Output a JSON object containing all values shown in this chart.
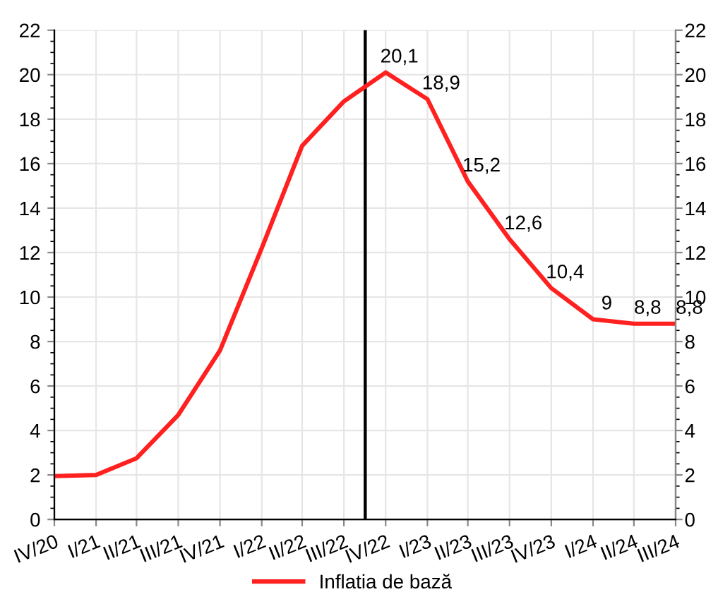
{
  "chart_data": {
    "type": "line",
    "x": [
      "2020-11-15",
      "2021-02-15",
      "2021-05-15",
      "2021-08-15",
      "2021-11-15",
      "2022-02-15",
      "2022-05-15",
      "2022-08-15",
      "2022-11-15",
      "2023-02-15",
      "2023-05-15",
      "2023-08-15",
      "2023-11-15",
      "2024-02-15",
      "2024-05-15",
      "2024-08-15"
    ],
    "series": [
      {
        "name": "Inflatia de bază",
        "color": "#ff2020",
        "values": [
          1.95,
          2.0,
          2.75,
          4.7,
          7.6,
          12.2,
          16.8,
          18.8,
          20.1,
          18.9,
          15.2,
          12.6,
          10.4,
          9,
          8.8,
          8.8
        ],
        "value_labels": [
          null,
          null,
          null,
          null,
          null,
          null,
          null,
          null,
          "20,1",
          "18,9",
          "15,2",
          "12,6",
          "10,4",
          "9",
          "8,8",
          "8,8"
        ]
      }
    ],
    "xlim": [
      "2020-11-15",
      "2024-08-15"
    ],
    "xticks": [
      {
        "value": "2020-11-15",
        "label": "IV/20"
      },
      {
        "value": "2021-02-15",
        "label": "I/21"
      },
      {
        "value": "2021-05-15",
        "label": "II/21"
      },
      {
        "value": "2021-08-15",
        "label": "III/21"
      },
      {
        "value": "2021-11-15",
        "label": "IV/21"
      },
      {
        "value": "2022-02-15",
        "label": "I/22"
      },
      {
        "value": "2022-05-15",
        "label": "II/22"
      },
      {
        "value": "2022-08-15",
        "label": "III/22"
      },
      {
        "value": "2022-11-15",
        "label": "IV/22"
      },
      {
        "value": "2023-02-15",
        "label": "I/23"
      },
      {
        "value": "2023-05-15",
        "label": "II/23"
      },
      {
        "value": "2023-08-15",
        "label": "III/23"
      },
      {
        "value": "2023-11-15",
        "label": "IV/23"
      },
      {
        "value": "2024-02-15",
        "label": "I/24"
      },
      {
        "value": "2024-05-15",
        "label": "II/24"
      },
      {
        "value": "2024-08-15",
        "label": "III/24"
      }
    ],
    "ylim": [
      0,
      22
    ],
    "yticks": [
      0,
      2,
      4,
      6,
      8,
      10,
      12,
      14,
      16,
      18,
      20,
      22
    ],
    "y2lim": [
      0,
      22
    ],
    "y2ticks": [
      0,
      2,
      4,
      6,
      8,
      10,
      12,
      14,
      16,
      18,
      20,
      22
    ],
    "ref_lines": [
      {
        "axis": "x",
        "value": "2022-10-01",
        "color": "#000000"
      }
    ],
    "grid": true,
    "legend": "bottom",
    "marker": "none",
    "line_style": "solid"
  }
}
